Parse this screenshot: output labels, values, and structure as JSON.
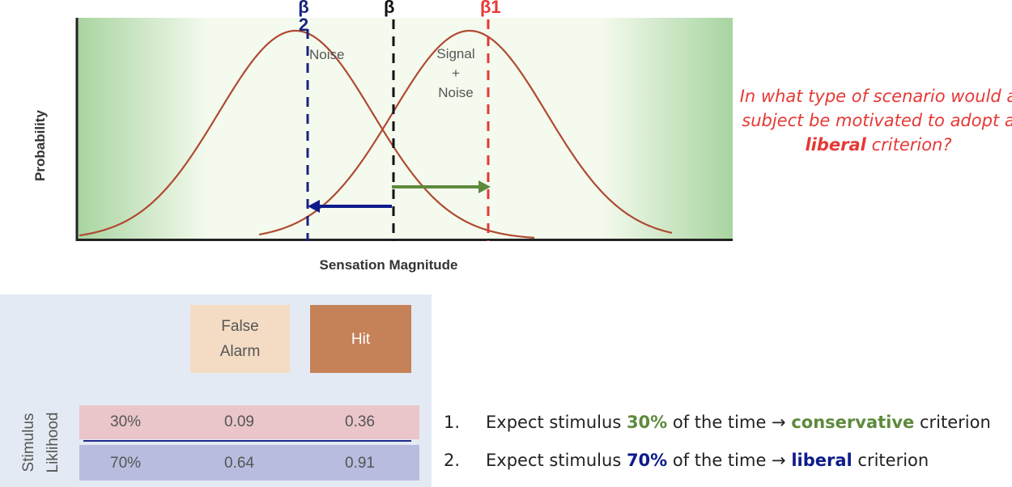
{
  "chart": {
    "ylabel": "Probability",
    "xlabel": "Sensation Magnitude",
    "noise_label": "Noise",
    "signal_label_lines": [
      "Signal",
      "+",
      "Noise"
    ],
    "beta2_label": "β\n2",
    "beta_label": "β",
    "beta1_label": "β1"
  },
  "question": {
    "part1": "In what type of scenario would a subject be motivated to adopt a ",
    "emphasis": "liberal",
    "part2": " criterion?"
  },
  "table": {
    "header_false_alarm": "False\nAlarm",
    "header_hit": "Hit",
    "stimulus_label_1": "Stimulus",
    "stimulus_label_2": "Liklihood",
    "rows": [
      {
        "likelihood": "30%",
        "false_alarm": "0.09",
        "hit": "0.36"
      },
      {
        "likelihood": "70%",
        "false_alarm": "0.64",
        "hit": "0.91"
      }
    ]
  },
  "list": [
    {
      "num": "1.",
      "pre": "Expect stimulus ",
      "pct": "30%",
      "mid": " of the time → ",
      "crit": "conservative",
      "post": " criterion"
    },
    {
      "num": "2.",
      "pre": "Expect stimulus ",
      "pct": "70%",
      "mid": " of the time → ",
      "crit": "liberal",
      "post": " criterion"
    }
  ],
  "colors": {
    "curve": "#b04a32",
    "beta2": "#1a237e",
    "beta": "#111111",
    "beta1": "#e53935",
    "arrow_left": "#0d1b8a",
    "arrow_right": "#5d8a3c",
    "question": "#e53935",
    "conservative": "#5d8a3c",
    "liberal": "#0d1b8a"
  }
}
